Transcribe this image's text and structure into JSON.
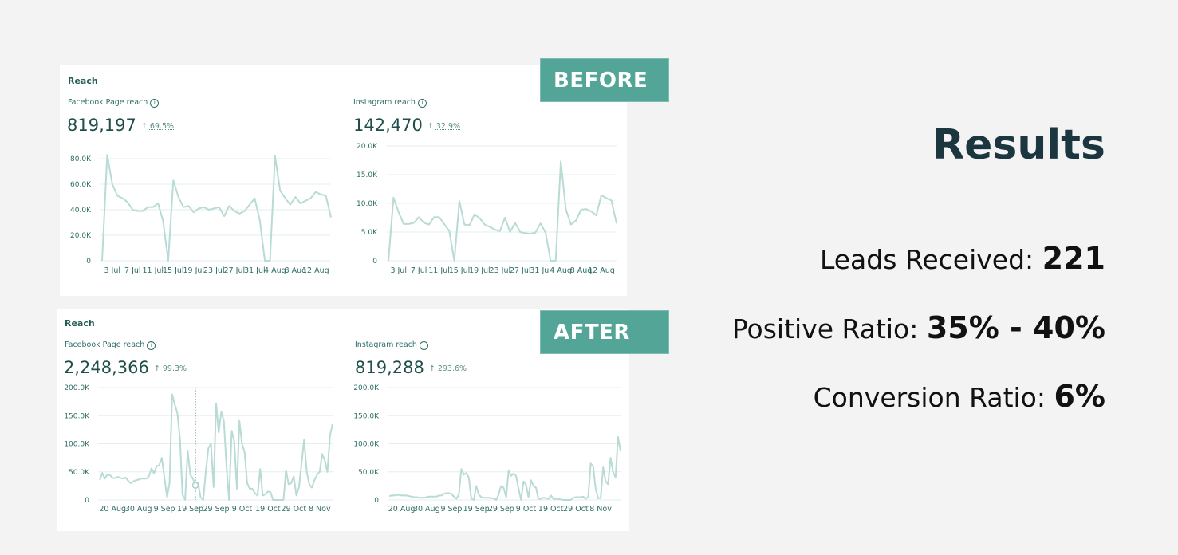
{
  "badges": {
    "before": "BEFORE",
    "after": "AFTER"
  },
  "panels": {
    "before": {
      "title": "Reach",
      "facebook": {
        "label": "Facebook Page reach",
        "value": "819,197",
        "arrow": "↑",
        "change": "69.5%"
      },
      "instagram": {
        "label": "Instagram reach",
        "value": "142,470",
        "arrow": "↑",
        "change": "32.9%"
      }
    },
    "after": {
      "title": "Reach",
      "facebook": {
        "label": "Facebook Page reach",
        "value": "2,248,366",
        "arrow": "↑",
        "change": "99.3%"
      },
      "instagram": {
        "label": "Instagram reach",
        "value": "819,288",
        "arrow": "↑",
        "change": "293.6%"
      }
    }
  },
  "info_icon": "info-circle-icon",
  "results": {
    "title": "Results",
    "stats": [
      {
        "label": "Leads Received: ",
        "value": "221"
      },
      {
        "label": "Positive Ratio: ",
        "value": "35% - 40%"
      },
      {
        "label": "Conversion Ratio: ",
        "value": "6%"
      }
    ]
  },
  "colors": {
    "badge": "#52a597",
    "line": "#b9dbd5",
    "text_teal": "#1f4f4a",
    "results_title": "#1c3640",
    "background": "#f3f3f3"
  },
  "chart_data": [
    {
      "id": "before-facebook",
      "type": "line",
      "title": "Facebook Page reach",
      "yticks": [
        0,
        20,
        40,
        60,
        80
      ],
      "ytick_labels": [
        "0",
        "20.0K",
        "40.0K",
        "60.0K",
        "80.0K"
      ],
      "ylim": [
        0,
        80
      ],
      "yunit": "K",
      "xtick_labels": [
        "3 Jul",
        "7 Jul",
        "11 Jul",
        "15 Jul",
        "19 Jul",
        "23 Jul",
        "27 Jul",
        "31 Jul",
        "4 Aug",
        "8 Aug",
        "12 Aug"
      ],
      "first_date": "1 Jul",
      "xtick_first_day": 2,
      "xtick_step_days": 4,
      "grid": true,
      "values": [
        0,
        83,
        60,
        51,
        49,
        46,
        40,
        39,
        39,
        42,
        42,
        45,
        31,
        0,
        63,
        50,
        42,
        43,
        38,
        41,
        42,
        40,
        41,
        42,
        35,
        43,
        39,
        37,
        39,
        44,
        49,
        32,
        0,
        0,
        82,
        55,
        49,
        44,
        50,
        45,
        47,
        49,
        54,
        52,
        51,
        34
      ]
    },
    {
      "id": "before-instagram",
      "type": "line",
      "title": "Instagram reach",
      "yticks": [
        0,
        5,
        10,
        15,
        20
      ],
      "ytick_labels": [
        "0",
        "5.0K",
        "10.0K",
        "15.0K",
        "20.0K"
      ],
      "ylim": [
        0,
        20
      ],
      "yunit": "K",
      "xtick_labels": [
        "3 Jul",
        "7 Jul",
        "11 Jul",
        "15 Jul",
        "19 Jul",
        "23 Jul",
        "27 Jul",
        "31 Jul",
        "4 Aug",
        "8 Aug",
        "12 Aug"
      ],
      "first_date": "1 Jul",
      "xtick_first_day": 2,
      "xtick_step_days": 4,
      "grid": true,
      "values": [
        0,
        11,
        8.5,
        6.4,
        6.4,
        6.6,
        7.6,
        6.6,
        6.3,
        7.6,
        7.6,
        6.4,
        5.2,
        0,
        10.4,
        6.3,
        6.2,
        8.1,
        7.4,
        6.3,
        5.9,
        5.4,
        5.2,
        7.5,
        5,
        6.6,
        5,
        4.8,
        4.7,
        4.9,
        6.5,
        4.9,
        0,
        0,
        17.3,
        9,
        6.3,
        7,
        8.9,
        9,
        8.6,
        7.9,
        11.4,
        10.9,
        10.5,
        6.5
      ]
    },
    {
      "id": "after-facebook",
      "type": "line",
      "title": "Facebook Page reach",
      "yticks": [
        0,
        50,
        100,
        150,
        200
      ],
      "ytick_labels": [
        "0",
        "50.0K",
        "100.0K",
        "150.0K",
        "200.0K"
      ],
      "ylim": [
        0,
        200
      ],
      "yunit": "K",
      "xtick_labels": [
        "20 Aug",
        "30 Aug",
        "9 Sep",
        "19 Sep",
        "29 Sep",
        "9 Oct",
        "19 Oct",
        "29 Oct",
        "8 Nov"
      ],
      "first_date": "15 Aug",
      "xtick_first_day": 5,
      "xtick_step_days": 10,
      "grid": true,
      "hover_marker_day": 37,
      "values": [
        35,
        48,
        38,
        46,
        44,
        39,
        39,
        41,
        39,
        38,
        40,
        34,
        30,
        33,
        35,
        36,
        38,
        38,
        38,
        42,
        56,
        47,
        60,
        62,
        75,
        40,
        5,
        30,
        188,
        170,
        155,
        110,
        10,
        0,
        88,
        45,
        38,
        26,
        30,
        5,
        0,
        50,
        92,
        100,
        23,
        172,
        120,
        157,
        140,
        60,
        0,
        123,
        105,
        20,
        141,
        100,
        85,
        30,
        20,
        20,
        12,
        8,
        55,
        8,
        10,
        15,
        14,
        0,
        0,
        0,
        0,
        0,
        53,
        28,
        30,
        42,
        8,
        22,
        65,
        107,
        50,
        28,
        22,
        35,
        45,
        50,
        82,
        70,
        50,
        115,
        135
      ]
    },
    {
      "id": "after-instagram",
      "type": "line",
      "title": "Instagram reach",
      "yticks": [
        0,
        50,
        100,
        150,
        200
      ],
      "ytick_labels": [
        "0",
        "50.0K",
        "100.0K",
        "150.0K",
        "200.0K"
      ],
      "ylim": [
        0,
        200
      ],
      "yunit": "K",
      "xtick_labels": [
        "20 Aug",
        "30 Aug",
        "9 Sep",
        "19 Sep",
        "29 Sep",
        "9 Oct",
        "19 Oct",
        "29 Oct",
        "8 Nov"
      ],
      "first_date": "15 Aug",
      "xtick_first_day": 5,
      "xtick_step_days": 10,
      "grid": true,
      "values": [
        7,
        8,
        8,
        9,
        9,
        8,
        8,
        8,
        7,
        6,
        5,
        5,
        4,
        4,
        4,
        5,
        6,
        6,
        6,
        6,
        8,
        8,
        11,
        12,
        12,
        11,
        6,
        2,
        10,
        55,
        45,
        48,
        40,
        2,
        0,
        25,
        10,
        5,
        4,
        4,
        4,
        3,
        3,
        0,
        10,
        25,
        22,
        5,
        52,
        43,
        47,
        43,
        20,
        0,
        33,
        27,
        5,
        35,
        25,
        22,
        2,
        2,
        4,
        3,
        2,
        8,
        2,
        2,
        2,
        1,
        0,
        0,
        0,
        0,
        4,
        5,
        5,
        5,
        6,
        2,
        5,
        65,
        60,
        20,
        3,
        3,
        58,
        33,
        28,
        75,
        50,
        40,
        112,
        88
      ]
    }
  ]
}
